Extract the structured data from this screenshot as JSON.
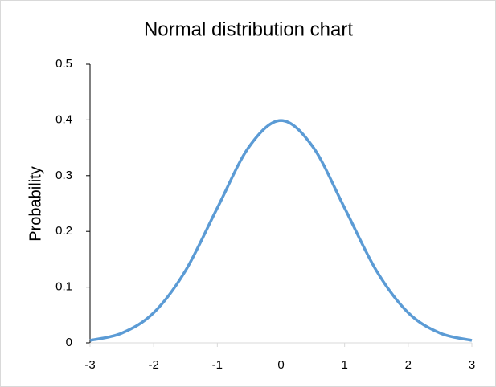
{
  "chart_data": {
    "type": "line",
    "title": "Normal distribution chart",
    "y_label": "Probability",
    "x": [
      -3,
      -2.5,
      -2,
      -1.5,
      -1,
      -0.5,
      0,
      0.5,
      1,
      1.5,
      2,
      2.5,
      3
    ],
    "series": [
      {
        "name": "Probability",
        "color": "#5b9bd5",
        "values": [
          0.0044,
          0.0175,
          0.054,
          0.1295,
          0.242,
          0.352,
          0.399,
          0.352,
          0.242,
          0.1295,
          0.054,
          0.0175,
          0.0044
        ]
      }
    ],
    "xlim": [
      -3,
      3
    ],
    "xticks": [
      -3,
      -2,
      -1,
      0,
      1,
      2,
      3
    ],
    "ylim": [
      0,
      0.5
    ],
    "yticks": [
      0,
      0.1,
      0.2,
      0.3,
      0.4,
      0.5
    ],
    "grid": false
  }
}
